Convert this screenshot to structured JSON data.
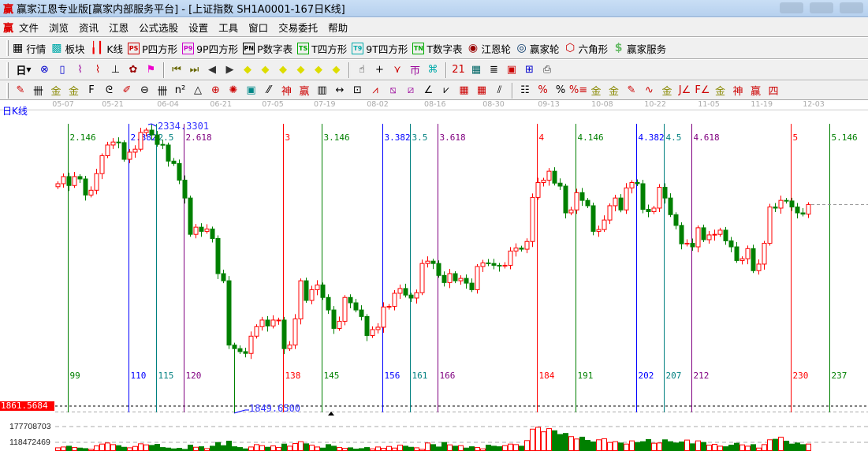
{
  "window": {
    "title": "赢家江恩专业版[赢家内部服务平台] - [上证指数  SH1A0001-167日K线]",
    "logo": "赢"
  },
  "menu": [
    "文件",
    "浏览",
    "资讯",
    "江恩",
    "公式选股",
    "设置",
    "工具",
    "窗口",
    "交易委托",
    "帮助"
  ],
  "toolbar1": [
    {
      "icon": "quote-table-icon",
      "glyph": "▦",
      "color": "#000",
      "label": "行情"
    },
    {
      "icon": "sector-blocks-icon",
      "glyph": "▩",
      "color": "#0aa",
      "label": "板块"
    },
    {
      "icon": "kline-icon",
      "glyph": "╽┃",
      "color": "#e00",
      "label": "K线"
    },
    {
      "icon": "ps-icon",
      "glyph": "PS",
      "color": "#c00",
      "label": "P四方形"
    },
    {
      "icon": "p9-icon",
      "glyph": "P9",
      "color": "#c0c",
      "label": "9P四方形"
    },
    {
      "icon": "pn-icon",
      "glyph": "PN",
      "color": "#000",
      "label": "P数字表"
    },
    {
      "icon": "ts-icon",
      "glyph": "TS",
      "color": "#0a0",
      "label": "T四方形"
    },
    {
      "icon": "t9-icon",
      "glyph": "T9",
      "color": "#0aa",
      "label": "9T四方形"
    },
    {
      "icon": "tn-icon",
      "glyph": "TN",
      "color": "#0a0",
      "label": "T数字表"
    },
    {
      "icon": "gann-wheel-icon",
      "glyph": "◉",
      "color": "#900",
      "label": "江恩轮"
    },
    {
      "icon": "winner-wheel-icon",
      "glyph": "◎",
      "color": "#036",
      "label": "赢家轮"
    },
    {
      "icon": "hexagon-icon",
      "glyph": "⬡",
      "color": "#c00",
      "label": "六角形"
    },
    {
      "icon": "dollar-icon",
      "glyph": "$",
      "color": "#6b6",
      "label": "赢家服务"
    }
  ],
  "toolbar2": {
    "period": "日",
    "icons": [
      {
        "name": "link-chart-icon",
        "glyph": "⊗",
        "color": "#00c"
      },
      {
        "name": "notes-icon",
        "glyph": "▯",
        "color": "#00c"
      },
      {
        "name": "indicator-3-icon",
        "glyph": "⌇",
        "color": "#909"
      },
      {
        "name": "indicator-9-icon",
        "glyph": "⌇",
        "color": "#c00"
      },
      {
        "name": "candle-type-icon",
        "glyph": "⊥",
        "color": "#000"
      },
      {
        "name": "map-icon",
        "glyph": "✿",
        "color": "#900"
      },
      {
        "name": "flag-icon",
        "glyph": "⚑",
        "color": "#e0c"
      },
      {
        "name": "first-icon",
        "glyph": "⏮",
        "color": "#660"
      },
      {
        "name": "last-icon",
        "glyph": "⏭",
        "color": "#660"
      },
      {
        "name": "prev-icon",
        "glyph": "◀",
        "color": "#333"
      },
      {
        "name": "next-icon",
        "glyph": "▶",
        "color": "#333"
      },
      {
        "name": "move-left-icon",
        "glyph": "◆",
        "color": "#dd0"
      },
      {
        "name": "move-right-icon",
        "glyph": "◆",
        "color": "#dd0"
      },
      {
        "name": "expand-h-icon",
        "glyph": "◆",
        "color": "#dd0"
      },
      {
        "name": "shrink-h-icon",
        "glyph": "◆",
        "color": "#dd0"
      },
      {
        "name": "expand-all-icon",
        "glyph": "◆",
        "color": "#dd0"
      },
      {
        "name": "shrink-all-icon",
        "glyph": "◆",
        "color": "#dd0"
      },
      {
        "name": "hand-icon",
        "glyph": "☝",
        "color": "#000"
      },
      {
        "name": "crosshair-icon",
        "glyph": "+",
        "color": "#000"
      },
      {
        "name": "draw-line-icon",
        "glyph": "⋎",
        "color": "#c00"
      },
      {
        "name": "pattern-icon",
        "glyph": "帀",
        "color": "#909"
      },
      {
        "name": "formula-icon",
        "glyph": "⌘",
        "color": "#0aa"
      },
      {
        "name": "calendar-icon",
        "glyph": "21",
        "color": "#c00"
      },
      {
        "name": "calculator-icon",
        "glyph": "▦",
        "color": "#066"
      },
      {
        "name": "report-icon",
        "glyph": "≣",
        "color": "#000"
      },
      {
        "name": "save-icon",
        "glyph": "▣",
        "color": "#c00"
      },
      {
        "name": "network-icon",
        "glyph": "⊞",
        "color": "#00c"
      },
      {
        "name": "print-icon",
        "glyph": "⎙",
        "color": "#333"
      }
    ]
  },
  "toolbar3": [
    {
      "name": "pen-icon",
      "glyph": "✎",
      "color": "#c00"
    },
    {
      "name": "parallel-icon",
      "glyph": "卌",
      "color": "#000"
    },
    {
      "name": "gold-split-icon",
      "glyph": "金",
      "color": "#880"
    },
    {
      "name": "gold-split2-icon",
      "glyph": "金",
      "color": "#880"
    },
    {
      "name": "fib-icon",
      "glyph": "F",
      "color": "#000"
    },
    {
      "name": "spiral-icon",
      "glyph": "ᘓ",
      "color": "#000"
    },
    {
      "name": "brush-icon",
      "glyph": "✐",
      "color": "#c00"
    },
    {
      "name": "circle-ruler-icon",
      "glyph": "⊖",
      "color": "#000"
    },
    {
      "name": "lines-icon",
      "glyph": "卌",
      "color": "#000"
    },
    {
      "name": "n2-icon",
      "glyph": "n²",
      "color": "#000"
    },
    {
      "name": "triangle-icon",
      "glyph": "△",
      "color": "#000"
    },
    {
      "name": "target-icon",
      "glyph": "⊕",
      "color": "#c00"
    },
    {
      "name": "web-icon",
      "glyph": "✺",
      "color": "#c00"
    },
    {
      "name": "square-target-icon",
      "glyph": "▣",
      "color": "#088"
    },
    {
      "name": "angle-icon",
      "glyph": "⁄⁄",
      "color": "#000"
    },
    {
      "name": "shen-icon",
      "glyph": "神",
      "color": "#c00"
    },
    {
      "name": "ying-icon",
      "glyph": "赢",
      "color": "#c00"
    },
    {
      "name": "ruler-icon",
      "glyph": "▥",
      "color": "#000"
    },
    {
      "name": "measure-icon",
      "glyph": "↔",
      "color": "#000"
    },
    {
      "name": "box-icon",
      "glyph": "⊡",
      "color": "#000"
    },
    {
      "name": "fan-icon",
      "glyph": "⩘",
      "color": "#c00"
    },
    {
      "name": "gann-box-icon",
      "glyph": "⧅",
      "color": "#909"
    },
    {
      "name": "gann-grid-icon",
      "glyph": "⧄",
      "color": "#909"
    },
    {
      "name": "fan-lines-icon",
      "glyph": "∠",
      "color": "#000"
    },
    {
      "name": "zigzag-icon",
      "glyph": "⩗",
      "color": "#000"
    },
    {
      "name": "grid-icon",
      "glyph": "▦",
      "color": "#c00"
    },
    {
      "name": "grid2-icon",
      "glyph": "▦",
      "color": "#c00"
    },
    {
      "name": "channel-icon",
      "glyph": "⫽",
      "color": "#000"
    },
    {
      "name": "table-icon",
      "glyph": "☷",
      "color": "#000"
    },
    {
      "name": "pct-line-icon",
      "glyph": "%",
      "color": "#c00"
    },
    {
      "name": "percent-icon",
      "glyph": "%",
      "color": "#000"
    },
    {
      "name": "pct-lines-icon",
      "glyph": "%≡",
      "color": "#c00"
    },
    {
      "name": "gold-circle-icon",
      "glyph": "金",
      "color": "#880"
    },
    {
      "name": "gold-lines-icon",
      "glyph": "金",
      "color": "#880"
    },
    {
      "name": "pen-up-icon",
      "glyph": "✎",
      "color": "#c00"
    },
    {
      "name": "sine-icon",
      "glyph": "∿",
      "color": "#c00"
    },
    {
      "name": "gold-line-icon",
      "glyph": "金",
      "color": "#880"
    },
    {
      "name": "j-fan-icon",
      "glyph": "J∠",
      "color": "#c00"
    },
    {
      "name": "f-fan-icon",
      "glyph": "F∠",
      "color": "#c00"
    },
    {
      "name": "gold-fan-icon",
      "glyph": "金",
      "color": "#880"
    },
    {
      "name": "shen-fan-icon",
      "glyph": "神",
      "color": "#c00"
    },
    {
      "name": "ying-fan-icon",
      "glyph": "赢",
      "color": "#c00"
    },
    {
      "name": "si-fan-icon",
      "glyph": "四",
      "color": "#c00"
    }
  ],
  "chart_label": "日K线",
  "chart_data": {
    "type": "candlestick",
    "price_range": [
      1849.65,
      2334.33
    ],
    "high_label": "2334.3301",
    "low_label": "1849.6500",
    "high_bar": 17,
    "low_bar": 32,
    "current_price_tag": "1861.5684",
    "date_ticks": [
      {
        "label": "05-07",
        "bar": 1
      },
      {
        "label": "05-21",
        "bar": 10
      },
      {
        "label": "06-04",
        "bar": 20
      },
      {
        "label": "06-21",
        "bar": 29.6
      },
      {
        "label": "07-05",
        "bar": 39
      },
      {
        "label": "07-19",
        "bar": 48.4
      },
      {
        "label": "08-02",
        "bar": 58
      },
      {
        "label": "08-16",
        "bar": 68.4
      },
      {
        "label": "08-30",
        "bar": 79
      },
      {
        "label": "09-13",
        "bar": 89
      },
      {
        "label": "10-08",
        "bar": 98.7
      },
      {
        "label": "10-22",
        "bar": 108.3
      },
      {
        "label": "11-05",
        "bar": 118
      },
      {
        "label": "11-19",
        "bar": 127.6
      },
      {
        "label": "12-03",
        "bar": 137
      }
    ],
    "close": [
      2235,
      2247,
      2232,
      2247,
      2243,
      2216,
      2224,
      2252,
      2282,
      2300,
      2305,
      2304,
      2276,
      2288,
      2293,
      2321,
      2325,
      2317,
      2301,
      2300,
      2273,
      2269,
      2241,
      2211,
      2150,
      2162,
      2155,
      2159,
      2143,
      2084,
      2072,
      1964,
      1958,
      1953,
      1950,
      1979,
      1995,
      2006,
      1996,
      2006,
      2006,
      1958,
      1964,
      2008,
      2072,
      2039,
      2057,
      2065,
      2044,
      2023,
      1992,
      2004,
      2044,
      2035,
      2023,
      2012,
      1980,
      1990,
      1994,
      2028,
      2029,
      2051,
      2059,
      2048,
      2043,
      2052,
      2101,
      2105,
      2101,
      2081,
      2069,
      2084,
      2072,
      2076,
      2068,
      2057,
      2096,
      2102,
      2101,
      2098,
      2097,
      2098,
      2122,
      2127,
      2125,
      2138,
      2212,
      2237,
      2241,
      2256,
      2236,
      2231,
      2186,
      2191,
      2220,
      2207,
      2198,
      2155,
      2158,
      2174,
      2198,
      2211,
      2191,
      2228,
      2237,
      2235,
      2192,
      2188,
      2194,
      2229,
      2211,
      2183,
      2165,
      2134,
      2135,
      2129,
      2161,
      2141,
      2149,
      2150,
      2157,
      2139,
      2129,
      2106,
      2109,
      2126,
      2089,
      2100,
      2135,
      2196,
      2194,
      2207,
      2206,
      2196,
      2186,
      2184,
      2200
    ],
    "volume": [
      98000000,
      101000000,
      104000000,
      99000000,
      97000000,
      95000000,
      92000000,
      105000000,
      112000000,
      116000000,
      110000000,
      106000000,
      100000000,
      98000000,
      103000000,
      113000000,
      109000000,
      107000000,
      111000000,
      99000000,
      97000000,
      94000000,
      96000000,
      92000000,
      108000000,
      100000000,
      102000000,
      95000000,
      104000000,
      118000000,
      106000000,
      123000000,
      102000000,
      99000000,
      94000000,
      101000000,
      110000000,
      106000000,
      100000000,
      105000000,
      99000000,
      112000000,
      104000000,
      114000000,
      121000000,
      113000000,
      108000000,
      101000000,
      97000000,
      110000000,
      104000000,
      99000000,
      96000000,
      98000000,
      93000000,
      95000000,
      99000000,
      94000000,
      101000000,
      96000000,
      103000000,
      97000000,
      108000000,
      104000000,
      100000000,
      98000000,
      92000000,
      116000000,
      110000000,
      101000000,
      118000000,
      109000000,
      104000000,
      106000000,
      97000000,
      102000000,
      99000000,
      94000000,
      108000000,
      104000000,
      102000000,
      106000000,
      112000000,
      110000000,
      104000000,
      125000000,
      168000000,
      175000000,
      158000000,
      170000000,
      162000000,
      148000000,
      152000000,
      140000000,
      131000000,
      138000000,
      126000000,
      120000000,
      128000000,
      132000000,
      118000000,
      121000000,
      116000000,
      112000000,
      124000000,
      118000000,
      121000000,
      129000000,
      115000000,
      116000000,
      128000000,
      121000000,
      116000000,
      120000000,
      127000000,
      113000000,
      124000000,
      118000000,
      108000000,
      111000000,
      104000000,
      102000000,
      108000000,
      115000000,
      109000000,
      104000000,
      110000000,
      97000000,
      110000000,
      128000000,
      130000000,
      138000000,
      123000000,
      112000000,
      116000000,
      110000000,
      112000000
    ],
    "volume_ticks": [
      "177708703",
      "118472469"
    ],
    "time_lines": [
      {
        "bar_no": 99,
        "ratio": "2.146",
        "color": "#008000"
      },
      {
        "bar_no": 110,
        "ratio": "2.382",
        "color": "#0000ff"
      },
      {
        "bar_no": 115,
        "ratio": "2.5",
        "color": "#008080"
      },
      {
        "bar_no": 120,
        "ratio": "2.618",
        "color": "#800080"
      },
      {
        "bar_no": 138,
        "ratio": "3",
        "color": "#ff0000"
      },
      {
        "bar_no": 145,
        "ratio": "3.146",
        "color": "#008000"
      },
      {
        "bar_no": 156,
        "ratio": "3.382",
        "color": "#0000ff"
      },
      {
        "bar_no": 161,
        "ratio": "3.5",
        "color": "#008080"
      },
      {
        "bar_no": 166,
        "ratio": "3.618",
        "color": "#800080"
      },
      {
        "bar_no": 184,
        "ratio": "4",
        "color": "#ff0000"
      },
      {
        "bar_no": 191,
        "ratio": "4.146",
        "color": "#008000"
      },
      {
        "bar_no": 202,
        "ratio": "4.382",
        "color": "#0000ff"
      },
      {
        "bar_no": 207,
        "ratio": "4.5",
        "color": "#008080"
      },
      {
        "bar_no": 212,
        "ratio": "4.618",
        "color": "#800080"
      },
      {
        "bar_no": 230,
        "ratio": "5",
        "color": "#ff0000"
      },
      {
        "bar_no": 237,
        "ratio": "5.146",
        "color": "#008000"
      }
    ],
    "up_color": "#ff0000",
    "down_color": "#008000"
  }
}
